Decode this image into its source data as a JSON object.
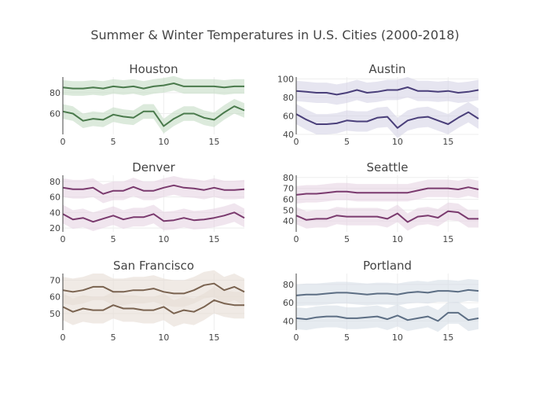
{
  "chart_data": {
    "type": "line",
    "title": "Summer & Winter Temperatures in U.S. Cities (2000-2018)",
    "x": [
      0,
      1,
      2,
      3,
      4,
      5,
      6,
      7,
      8,
      9,
      10,
      11,
      12,
      13,
      14,
      15,
      16,
      17,
      18
    ],
    "subplots": [
      {
        "name": "Houston",
        "color": "#4a7a4c",
        "fill": "#c5dcc5",
        "xlim": [
          0,
          18
        ],
        "ylim": [
          40,
          95
        ],
        "xticks": [
          0,
          5,
          10,
          15
        ],
        "yticks": [
          60,
          80
        ],
        "series": [
          {
            "values": [
              85,
              84,
              84,
              85,
              84,
              86,
              85,
              86,
              84,
              86,
              87,
              89,
              86,
              86,
              86,
              86,
              85,
              86,
              86
            ],
            "band": 7
          },
          {
            "values": [
              62,
              60,
              53,
              55,
              54,
              59,
              57,
              56,
              62,
              62,
              48,
              55,
              60,
              60,
              56,
              54,
              61,
              67,
              63
            ],
            "band": 7
          }
        ]
      },
      {
        "name": "Austin",
        "color": "#4a3f7a",
        "fill": "#d6d3e6",
        "xlim": [
          0,
          18
        ],
        "ylim": [
          40,
          102
        ],
        "xticks": [
          0,
          5,
          10,
          15
        ],
        "yticks": [
          40,
          60,
          80,
          100
        ],
        "series": [
          {
            "values": [
              87,
              86,
              85,
              85,
              83,
              85,
              88,
              85,
              86,
              88,
              88,
              91,
              87,
              87,
              86,
              87,
              85,
              86,
              88
            ],
            "band": 11
          },
          {
            "values": [
              62,
              56,
              51,
              51,
              52,
              55,
              54,
              54,
              58,
              59,
              47,
              55,
              58,
              59,
              55,
              51,
              58,
              64,
              57
            ],
            "band": 11
          }
        ]
      },
      {
        "name": "Denver",
        "color": "#7a3a6e",
        "fill": "#e6d4e2",
        "xlim": [
          0,
          18
        ],
        "ylim": [
          15,
          88
        ],
        "xticks": [
          0,
          5,
          10,
          15
        ],
        "yticks": [
          20,
          40,
          60,
          80
        ],
        "series": [
          {
            "values": [
              72,
              70,
              70,
              72,
              64,
              68,
              68,
              73,
              68,
              68,
              72,
              75,
              72,
              71,
              69,
              72,
              69,
              69,
              70
            ],
            "band": 12
          },
          {
            "values": [
              38,
              31,
              33,
              28,
              32,
              36,
              31,
              34,
              34,
              38,
              29,
              30,
              33,
              30,
              31,
              33,
              36,
              40,
              33
            ],
            "band": 12
          }
        ]
      },
      {
        "name": "Seattle",
        "color": "#7a3a6e",
        "fill": "#e6d4e2",
        "xlim": [
          0,
          18
        ],
        "ylim": [
          30,
          82
        ],
        "xticks": [
          0,
          5,
          10,
          15
        ],
        "yticks": [
          40,
          50,
          60,
          70,
          80
        ],
        "series": [
          {
            "values": [
              64,
              65,
              65,
              66,
              67,
              67,
              66,
              66,
              66,
              66,
              66,
              66,
              68,
              70,
              70,
              70,
              69,
              71,
              69
            ],
            "band": 8
          },
          {
            "values": [
              45,
              41,
              42,
              42,
              45,
              44,
              44,
              44,
              44,
              42,
              47,
              39,
              44,
              45,
              43,
              49,
              48,
              42,
              42
            ],
            "band": 8
          }
        ]
      },
      {
        "name": "San Francisco",
        "color": "#7a6350",
        "fill": "#e6dcd3",
        "xlim": [
          0,
          18
        ],
        "ylim": [
          40,
          74
        ],
        "xticks": [
          0,
          5,
          10,
          15
        ],
        "yticks": [
          50,
          60,
          70
        ],
        "series": [
          {
            "values": [
              64,
              63,
              64,
              66,
              66,
              63,
              63,
              64,
              64,
              65,
              63,
              62,
              62,
              64,
              67,
              68,
              64,
              66,
              63
            ],
            "band": 8
          },
          {
            "values": [
              54,
              51,
              53,
              52,
              52,
              55,
              53,
              53,
              52,
              52,
              54,
              50,
              52,
              51,
              54,
              58,
              56,
              55,
              55
            ],
            "band": 8
          }
        ]
      },
      {
        "name": "Portland",
        "color": "#5c6e84",
        "fill": "#d6dde6",
        "xlim": [
          0,
          18
        ],
        "ylim": [
          30,
          92
        ],
        "xticks": [
          0,
          5,
          10,
          15
        ],
        "yticks": [
          40,
          60,
          80
        ],
        "series": [
          {
            "values": [
              68,
              69,
              69,
              70,
              71,
              71,
              70,
              69,
              70,
              70,
              69,
              71,
              72,
              71,
              73,
              73,
              72,
              74,
              73
            ],
            "band": 12
          },
          {
            "values": [
              43,
              42,
              44,
              45,
              45,
              43,
              43,
              44,
              45,
              42,
              46,
              41,
              43,
              45,
              40,
              49,
              49,
              41,
              43
            ],
            "band": 12
          }
        ]
      }
    ]
  }
}
